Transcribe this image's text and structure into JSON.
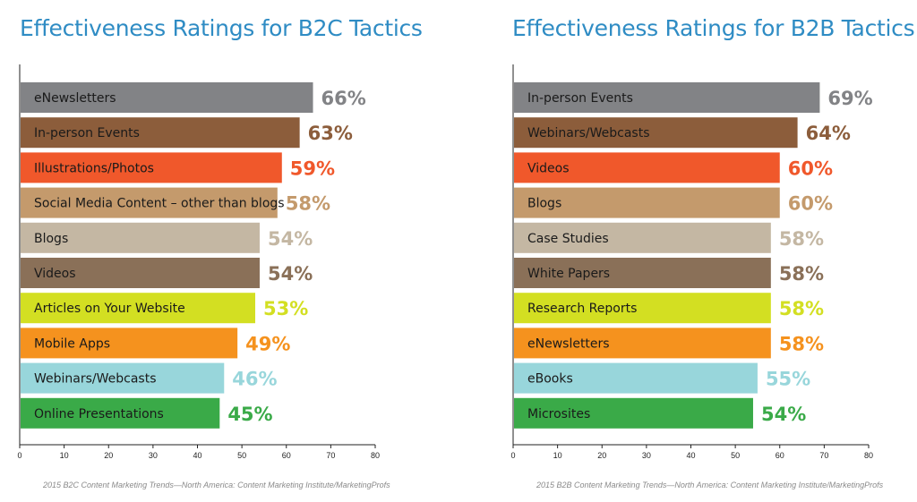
{
  "source_b2c": "2015 B2C Content Marketing Trends—North America: Content Marketing Institute/MarketingProfs",
  "source_b2b": "2015 B2B Content Marketing Trends—North America: Content Marketing Institute/MarketingProfs",
  "chart_data": [
    {
      "type": "bar",
      "orientation": "horizontal",
      "title": "Effectiveness Ratings for B2C Tactics",
      "xlim": [
        0,
        80
      ],
      "xticks": [
        0,
        10,
        20,
        30,
        40,
        50,
        60,
        70,
        80
      ],
      "categories": [
        "eNewsletters",
        "In-person Events",
        "Illustrations/Photos",
        "Social Media Content – other than blogs",
        "Blogs",
        "Videos",
        "Articles on Your Website",
        "Mobile Apps",
        "Webinars/Webcasts",
        "Online Presentations"
      ],
      "values": [
        66,
        63,
        59,
        58,
        54,
        54,
        53,
        49,
        46,
        45
      ],
      "value_labels": [
        "66%",
        "63%",
        "59%",
        "58%",
        "54%",
        "54%",
        "53%",
        "49%",
        "46%",
        "45%"
      ],
      "colors": [
        "#828386",
        "#8c5d3b",
        "#f0582b",
        "#c49a6c",
        "#c4b7a3",
        "#8a7058",
        "#d3df22",
        "#f5921e",
        "#98d6db",
        "#3aaa48"
      ],
      "grid": false
    },
    {
      "type": "bar",
      "orientation": "horizontal",
      "title": "Effectiveness Ratings for B2B Tactics",
      "xlim": [
        0,
        80
      ],
      "xticks": [
        0,
        10,
        20,
        30,
        40,
        50,
        60,
        70,
        80
      ],
      "categories": [
        "In-person Events",
        "Webinars/Webcasts",
        "Videos",
        "Blogs",
        "Case Studies",
        "White Papers",
        "Research Reports",
        "eNewsletters",
        "eBooks",
        "Microsites"
      ],
      "values": [
        69,
        64,
        60,
        60,
        58,
        58,
        58,
        58,
        55,
        54
      ],
      "value_labels": [
        "69%",
        "64%",
        "60%",
        "60%",
        "58%",
        "58%",
        "58%",
        "58%",
        "55%",
        "54%"
      ],
      "colors": [
        "#828386",
        "#8c5d3b",
        "#f0582b",
        "#c49a6c",
        "#c4b7a3",
        "#8a7058",
        "#d3df22",
        "#f5921e",
        "#98d6db",
        "#3aaa48"
      ],
      "grid": false
    }
  ]
}
